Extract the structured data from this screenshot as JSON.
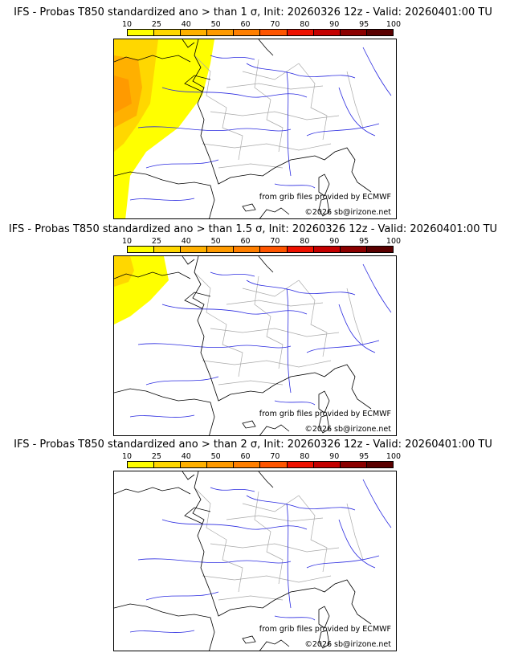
{
  "colorbar": {
    "labels": [
      "10",
      "25",
      "40",
      "50",
      "60",
      "70",
      "80",
      "90",
      "95",
      "100"
    ],
    "colors": [
      "#ffff00",
      "#ffd700",
      "#ffb000",
      "#ff9a00",
      "#ff7f00",
      "#ff5500",
      "#ee1100",
      "#c40000",
      "#8b0000",
      "#5a0000"
    ]
  },
  "map_colors": {
    "coast": "#000000",
    "rivers": "#2a2ae0",
    "borders": "#a8a8a8"
  },
  "credits": {
    "source": "from grib files provided by ECMWF",
    "copyright": "©2026 sb@irizone.net"
  },
  "panels": [
    {
      "title": "IFS - Probas T850  standardized ano > than 1 σ, Init: 20260326 12z - Valid: 20260401:00 TU",
      "anomaly_level": "strong"
    },
    {
      "title": "IFS - Probas T850  standardized ano > than 1.5 σ, Init: 20260326 12z - Valid: 20260401:00 TU",
      "anomaly_level": "medium"
    },
    {
      "title": "IFS - Probas T850  standardized ano > than 2 σ, Init: 20260326 12z - Valid: 20260401:00 TU",
      "anomaly_level": "none"
    }
  ]
}
